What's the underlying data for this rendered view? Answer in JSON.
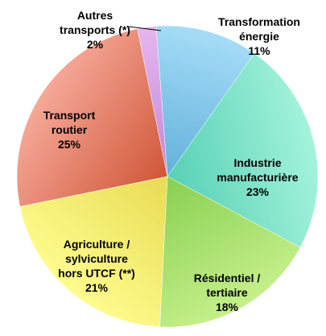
{
  "chart_data": {
    "type": "pie",
    "title": "",
    "slices": [
      {
        "lines": [
          "Transformation",
          "énergie"
        ],
        "value_label": "11%",
        "value": 11,
        "color_light": "#a6dcf8",
        "color_dark": "#4aa2d0"
      },
      {
        "lines": [
          "Industrie",
          "manufacturière"
        ],
        "value_label": "23%",
        "value": 23,
        "color_light": "#a4f3dc",
        "color_dark": "#3cc4a6"
      },
      {
        "lines": [
          "Résidentiel /",
          "tertiaire"
        ],
        "value_label": "18%",
        "value": 18,
        "color_light": "#c6f08a",
        "color_dark": "#72c43e"
      },
      {
        "lines": [
          "Agriculture /",
          "sylviculture",
          "hors UTCF (**)"
        ],
        "value_label": "21%",
        "value": 21,
        "color_light": "#fffc8e",
        "color_dark": "#e0d040"
      },
      {
        "lines": [
          "Transport",
          "routier"
        ],
        "value_label": "25%",
        "value": 25,
        "color_light": "#f6a898",
        "color_dark": "#c23a16"
      },
      {
        "lines": [
          "Autres",
          "transports (*)"
        ],
        "value_label": "2%",
        "value": 2,
        "color_light": "#e6b6f0",
        "color_dark": "#b678cc"
      }
    ]
  }
}
